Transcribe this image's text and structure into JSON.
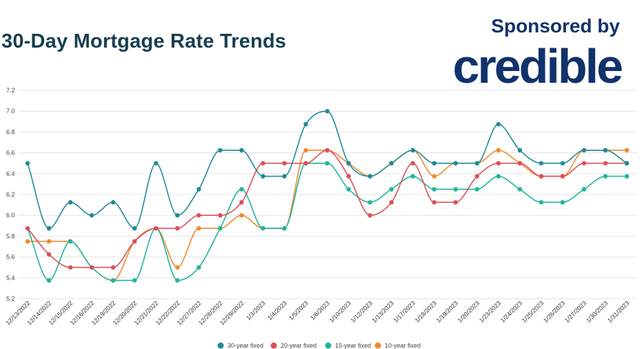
{
  "header": {
    "title": "30-Day Mortgage Rate Trends",
    "sponsor_label": "Sponsored by",
    "sponsor_brand": "credible"
  },
  "chart_data": {
    "type": "line",
    "title": "30-Day Mortgage Rate Trends",
    "xlabel": "",
    "ylabel": "",
    "ylim": [
      5.2,
      7.2
    ],
    "yticks": [
      "5.2",
      "5.4",
      "5.6",
      "5.8",
      "6.0",
      "6.2",
      "6.4",
      "6.6",
      "6.8",
      "7.0",
      "7.2"
    ],
    "grid": "horizontal",
    "legend": "bottom",
    "categories": [
      "12/13/2022",
      "12/14/2022",
      "12/15/2022",
      "12/16/2022",
      "12/19/2022",
      "12/20/2022",
      "12/21/2022",
      "12/22/2022",
      "12/27/2022",
      "12/28/2022",
      "12/29/2022",
      "1/3/2023",
      "1/4/2023",
      "1/5/2023",
      "1/6/2023",
      "1/10/2023",
      "1/12/2023",
      "1/13/2023",
      "1/17/2023",
      "1/18/2023",
      "1/19/2023",
      "1/20/2023",
      "1/23/2023",
      "1/24/2023",
      "1/25/2023",
      "1/26/2023",
      "1/27/2023",
      "1/30/2023",
      "1/31/2023"
    ],
    "series": [
      {
        "name": "30-year fixed",
        "color": "#1f8a99",
        "values": [
          6.5,
          5.875,
          6.125,
          6.0,
          6.125,
          5.875,
          6.5,
          6.0,
          6.25,
          6.625,
          6.625,
          6.375,
          6.375,
          6.875,
          7.0,
          6.5,
          6.375,
          6.5,
          6.625,
          6.5,
          6.5,
          6.5,
          6.875,
          6.625,
          6.5,
          6.5,
          6.625,
          6.625,
          6.5
        ]
      },
      {
        "name": "20-year fixed",
        "color": "#dc4f5a",
        "values": [
          5.875,
          5.625,
          5.5,
          5.5,
          5.5,
          5.75,
          5.875,
          5.875,
          6.0,
          6.0,
          6.125,
          6.5,
          6.5,
          6.5,
          6.625,
          6.375,
          6.0,
          6.125,
          6.5,
          6.125,
          6.125,
          6.375,
          6.5,
          6.5,
          6.375,
          6.375,
          6.5,
          6.5,
          6.5
        ]
      },
      {
        "name": "15-year fixed",
        "color": "#1fb59a",
        "values": [
          5.875,
          5.375,
          5.75,
          5.5,
          5.375,
          5.375,
          5.875,
          5.375,
          5.5,
          5.875,
          6.25,
          5.875,
          5.875,
          6.5,
          6.5,
          6.25,
          6.125,
          6.25,
          6.375,
          6.25,
          6.25,
          6.25,
          6.375,
          6.25,
          6.125,
          6.125,
          6.25,
          6.375,
          6.375
        ]
      },
      {
        "name": "10-year fixed",
        "color": "#ee8a2f",
        "values": [
          5.75,
          5.75,
          5.75,
          5.5,
          5.375,
          5.75,
          5.875,
          5.5,
          5.875,
          5.875,
          6.0,
          5.875,
          5.875,
          6.625,
          6.625,
          6.5,
          6.375,
          6.5,
          6.625,
          6.375,
          6.5,
          6.5,
          6.625,
          6.5,
          6.375,
          6.375,
          6.625,
          6.625,
          6.625
        ]
      }
    ]
  }
}
